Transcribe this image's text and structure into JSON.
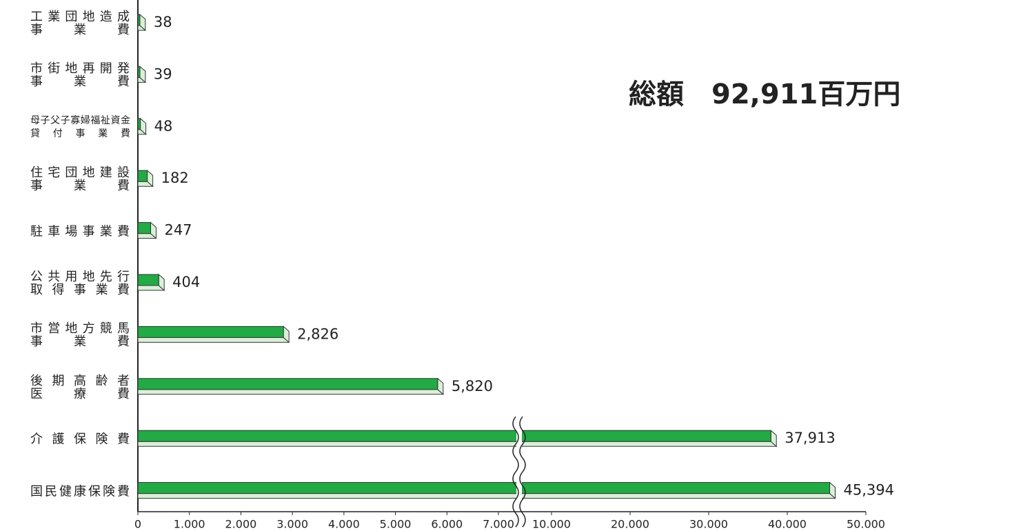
{
  "chart_data": {
    "type": "bar",
    "orientation": "horizontal",
    "title": "総額　92,911百万円",
    "categories": [
      "工業団地造成\n事　業　費",
      "市街地再開発\n事　業　費",
      "母子父子寡婦福祉資金\n貸付事業費",
      "住宅団地建設\n事　業　費",
      "駐車場事業費",
      "公共用地先行\n取得事業費",
      "市営地方競馬\n事　業　費",
      "後期高齢者\n医　療　費",
      "介護保険費",
      "国民健康保険費"
    ],
    "values": [
      38,
      39,
      48,
      182,
      247,
      404,
      2826,
      5820,
      37913,
      45394
    ],
    "value_labels": [
      "38",
      "39",
      "48",
      "182",
      "247",
      "404",
      "2,826",
      "5,820",
      "37,913",
      "45,394"
    ],
    "color": "#22aa44",
    "xlim": [
      0,
      50000
    ],
    "axis_break": [
      7000,
      10000
    ],
    "xticks": [
      0,
      {
        "value": 1000,
        "label": "1.000"
      },
      {
        "value": 2000,
        "label": "2.000"
      },
      {
        "value": 3000,
        "label": "3.000"
      },
      {
        "value": 4000,
        "label": "4.000"
      },
      {
        "value": 5000,
        "label": "5.000"
      },
      {
        "value": 6000,
        "label": "6.000"
      },
      {
        "value": 7000,
        "label": "7.000"
      },
      {
        "value": 10000,
        "label": "10.000"
      },
      {
        "value": 20000,
        "label": "20.000"
      },
      {
        "value": 30000,
        "label": "30.000"
      },
      {
        "value": 40000,
        "label": "40.000"
      },
      {
        "value": 50000,
        "label": "50.000"
      }
    ]
  }
}
